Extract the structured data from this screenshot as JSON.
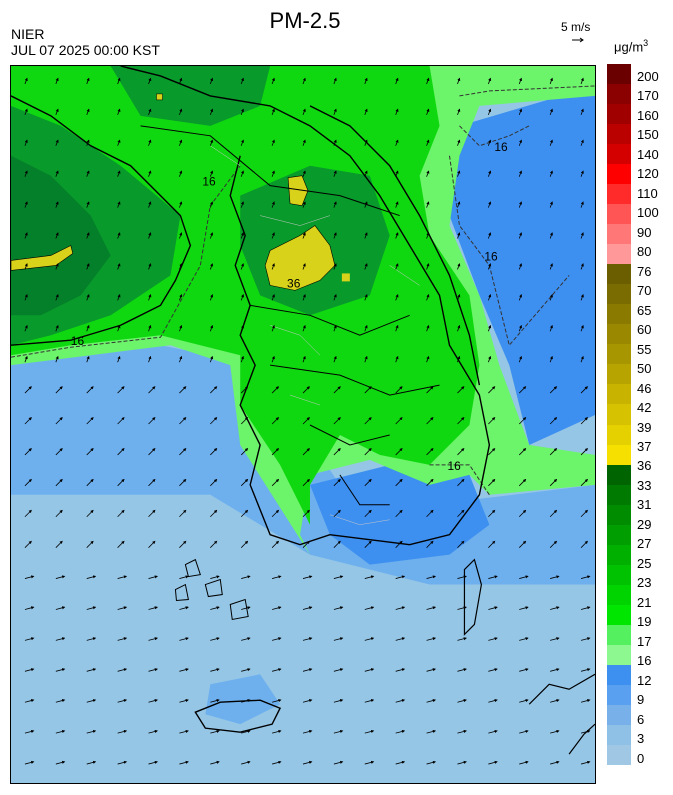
{
  "header": {
    "title": "PM-2.5",
    "agency": "NIER",
    "timestamp": "JUL 07 2025 00:00 KST",
    "wind_reference": "5 m/s",
    "unit_prefix": "μg/m",
    "unit_power": "3"
  },
  "legend": {
    "labels": [
      "200",
      "170",
      "160",
      "150",
      "140",
      "120",
      "110",
      "100",
      "90",
      "80",
      "76",
      "70",
      "65",
      "60",
      "55",
      "50",
      "46",
      "42",
      "39",
      "37",
      "36",
      "33",
      "31",
      "29",
      "27",
      "25",
      "23",
      "21",
      "19",
      "17",
      "16",
      "12",
      "9",
      "6",
      "3",
      "0"
    ],
    "colors": [
      "#6a0000",
      "#8b0000",
      "#a00000",
      "#bb0000",
      "#d40000",
      "#ff0000",
      "#ff2a2a",
      "#ff5555",
      "#ff7777",
      "#ff9999",
      "#6b5e00",
      "#7a6c00",
      "#8a7a00",
      "#998800",
      "#a89600",
      "#b8a400",
      "#c7b300",
      "#d6c200",
      "#e6d100",
      "#f5e000",
      "#006400",
      "#007a00",
      "#008c00",
      "#009e00",
      "#00b000",
      "#00c200",
      "#00d400",
      "#00e600",
      "#55f060",
      "#8df890",
      "#3d8ff0",
      "#5aa0f0",
      "#78b0ea",
      "#8fc0e6",
      "#a0c8e4"
    ]
  },
  "map_labels": {
    "c16_nw": "16",
    "c16_west": "16",
    "c16_ne": "16",
    "c16_east": "16",
    "c16_se": "16",
    "c36": "36"
  },
  "map_colors": {
    "sea_light": "#95c6e6",
    "sea_mid": "#6eb0ee",
    "sea_dark": "#3d8ff0",
    "green_light": "#6cf46a",
    "green_mid": "#10d810",
    "green_dark": "#089a2a",
    "green_deeper": "#05802a",
    "yellow": "#d8d21a"
  }
}
